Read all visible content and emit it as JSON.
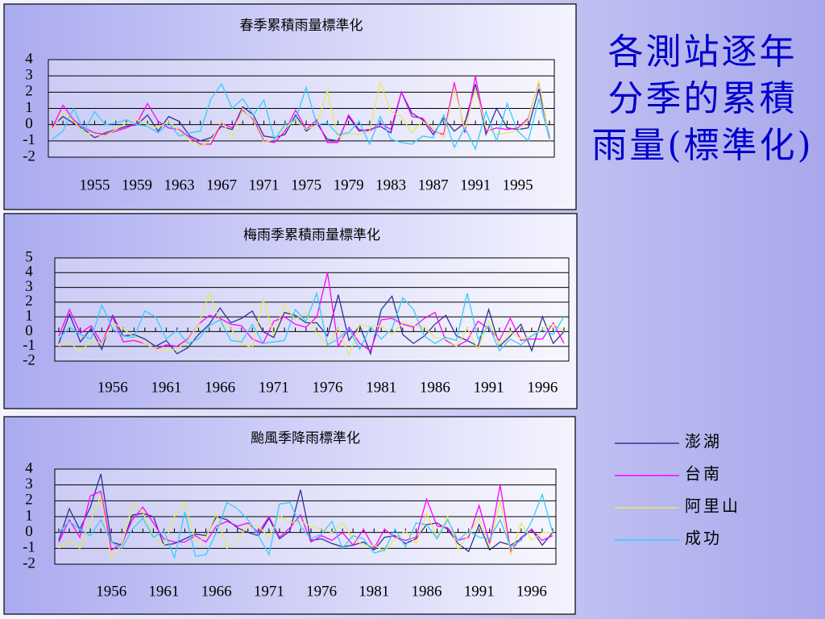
{
  "heading": {
    "lines": [
      "各測站逐年",
      "分季的累積",
      "雨量(標準化)"
    ]
  },
  "chart_data": [
    {
      "type": "line",
      "title": "春季累積雨量標準化",
      "categories": [
        null,
        null,
        null,
        null,
        "1955",
        null,
        null,
        null,
        "1959",
        null,
        null,
        null,
        "1963",
        null,
        null,
        null,
        "1967",
        null,
        null,
        null,
        "1971",
        null,
        null,
        null,
        "1975",
        null,
        null,
        null,
        "1979",
        null,
        null,
        null,
        "1983",
        null,
        null,
        null,
        "1987",
        null,
        null,
        null,
        "1991",
        null,
        null,
        null,
        "1995",
        null,
        null,
        null
      ],
      "ylim": [
        -2,
        4
      ],
      "yticks": [
        -2,
        -1,
        0,
        1,
        2,
        3,
        4
      ],
      "grid": true,
      "series": [
        {
          "name": "澎湖",
          "color": "#333399",
          "values": [
            -0.1,
            0.5,
            0.1,
            -0.3,
            -0.8,
            -0.5,
            -0.3,
            -0.1,
            0.0,
            0.6,
            -0.4,
            0.5,
            0.2,
            -0.7,
            -1.0,
            -0.8,
            -0.1,
            -0.3,
            1.1,
            0.6,
            -0.7,
            -0.8,
            -0.6,
            0.6,
            -0.4,
            0.1,
            -0.9,
            -1.0,
            0.5,
            -0.4,
            -0.3,
            -0.1,
            -0.5,
            2.0,
            0.7,
            0.3,
            -0.6,
            0.4,
            -0.4,
            0.1,
            2.5,
            -0.6,
            1.0,
            -0.2,
            -0.3,
            -0.2,
            2.2,
            -0.8
          ]
        },
        {
          "name": "台南",
          "color": "#ff00ff",
          "values": [
            -0.2,
            1.2,
            0.3,
            -0.2,
            -0.5,
            -0.6,
            -0.4,
            -0.2,
            0.1,
            1.3,
            0.2,
            -0.2,
            -0.3,
            -0.8,
            -1.2,
            -1.2,
            0.1,
            -0.2,
            0.9,
            0.3,
            -1.0,
            -1.1,
            -0.4,
            0.9,
            -0.3,
            0.3,
            -1.1,
            -1.1,
            0.6,
            -0.3,
            -0.4,
            0.1,
            -0.3,
            2.0,
            0.5,
            0.4,
            -0.4,
            -0.6,
            2.6,
            -0.5,
            3.0,
            -0.4,
            -0.2,
            -0.3,
            -0.2,
            0.4,
            2.6,
            -0.9
          ]
        },
        {
          "name": "阿里山",
          "color": "#e8e860",
          "values": [
            -0.3,
            0.8,
            0.2,
            -0.5,
            -0.6,
            -0.7,
            -0.3,
            0.1,
            0.3,
            0.0,
            -0.2,
            0.2,
            -0.4,
            -1.0,
            -1.3,
            -1.0,
            0.2,
            -0.8,
            1.0,
            0.2,
            -1.1,
            -0.9,
            -0.2,
            0.3,
            -0.3,
            0.0,
            2.1,
            -0.8,
            -0.5,
            -0.6,
            -0.4,
            2.6,
            0.8,
            0.5,
            -0.5,
            0.2,
            -0.2,
            -0.8,
            2.3,
            -0.3,
            2.2,
            -0.2,
            -0.6,
            -0.5,
            -0.4,
            0.3,
            2.7,
            -1.0
          ]
        },
        {
          "name": "成功",
          "color": "#33ccff",
          "values": [
            -0.9,
            -0.4,
            1.0,
            -0.4,
            0.8,
            0.0,
            0.1,
            0.3,
            0.0,
            -0.1,
            -0.5,
            0.1,
            -0.7,
            -0.5,
            -0.4,
            1.6,
            2.5,
            1.0,
            1.6,
            0.6,
            1.5,
            -0.9,
            0.0,
            0.3,
            2.3,
            0.0,
            0.1,
            -0.6,
            -0.5,
            0.2,
            -1.2,
            0.5,
            -0.9,
            -1.1,
            -1.2,
            -0.7,
            -0.8,
            0.6,
            -1.4,
            -0.2,
            -1.5,
            0.8,
            -1.0,
            1.3,
            -0.4,
            -1.0,
            1.6,
            -0.9
          ]
        }
      ]
    },
    {
      "type": "line",
      "title": "梅雨季累積雨量標準化",
      "categories": [
        null,
        null,
        null,
        null,
        null,
        "1956",
        null,
        null,
        null,
        null,
        "1961",
        null,
        null,
        null,
        null,
        "1966",
        null,
        null,
        null,
        null,
        "1971",
        null,
        null,
        null,
        null,
        "1976",
        null,
        null,
        null,
        null,
        "1981",
        null,
        null,
        null,
        null,
        "1986",
        null,
        null,
        null,
        null,
        "1991",
        null,
        null,
        null,
        null,
        "1996",
        null,
        null
      ],
      "ylim": [
        -2,
        5
      ],
      "yticks": [
        -2,
        -1,
        0,
        1,
        2,
        3,
        4,
        5
      ],
      "grid": true,
      "series": [
        {
          "name": "澎湖",
          "color": "#333399",
          "values": [
            -0.8,
            1.2,
            -0.7,
            0.2,
            -1.2,
            1.1,
            -0.3,
            -0.2,
            -0.5,
            -1.0,
            -0.6,
            -1.5,
            -1.1,
            -0.2,
            0.5,
            1.6,
            0.6,
            0.9,
            1.4,
            0.0,
            -0.4,
            1.3,
            1.1,
            0.6,
            0.6,
            -0.3,
            2.5,
            -0.6,
            0.4,
            -1.5,
            1.5,
            2.4,
            -0.2,
            -0.8,
            -0.3,
            0.5,
            1.1,
            -0.3,
            -0.6,
            -1.0,
            1.5,
            -1.0,
            -0.3,
            0.5,
            -1.3,
            1.0,
            -0.8,
            0.0
          ]
        },
        {
          "name": "台南",
          "color": "#ff00ff",
          "values": [
            -0.3,
            1.5,
            -0.1,
            0.4,
            -0.8,
            1.0,
            -0.7,
            -0.6,
            -0.8,
            -1.2,
            -0.9,
            -1.0,
            -0.5,
            0.5,
            1.1,
            0.9,
            0.5,
            0.4,
            -0.5,
            -0.8,
            0.7,
            1.0,
            0.5,
            0.3,
            1.0,
            4.0,
            -1.0,
            0.3,
            -0.8,
            -1.3,
            0.8,
            0.9,
            0.5,
            0.3,
            0.9,
            1.3,
            -0.6,
            -1.0,
            -0.6,
            0.7,
            0.2,
            -0.6,
            0.9,
            -0.6,
            -0.5,
            -0.5,
            0.6,
            -0.8
          ]
        },
        {
          "name": "阿里山",
          "color": "#e8e860",
          "values": [
            -1.0,
            -0.7,
            -1.4,
            -0.6,
            -0.8,
            0.6,
            0.2,
            -0.4,
            -0.8,
            -1.2,
            -1.3,
            -1.2,
            -0.6,
            0.5,
            2.6,
            0.7,
            0.2,
            -0.8,
            -1.1,
            2.2,
            -0.2,
            1.8,
            0.8,
            1.3,
            -0.1,
            -0.9,
            0.2,
            -1.6,
            0.5,
            0.3,
            0.4,
            -0.2,
            0.6,
            0.4,
            0.3,
            -0.4,
            -0.5,
            -1.0,
            0.2,
            -1.2,
            0.7,
            -0.9,
            0.0,
            -0.5,
            -0.3,
            0.2,
            0.5,
            0.0
          ]
        },
        {
          "name": "成功",
          "color": "#33ccff",
          "values": [
            -0.5,
            0.3,
            -0.2,
            -0.5,
            1.8,
            0.2,
            -0.3,
            -0.4,
            1.4,
            1.0,
            -0.5,
            0.1,
            -0.8,
            -0.5,
            0.4,
            0.8,
            -0.6,
            -0.7,
            0.5,
            -0.8,
            -0.7,
            -0.6,
            1.5,
            0.7,
            2.6,
            -0.9,
            -0.5,
            0.2,
            -1.2,
            0.3,
            -0.5,
            0.2,
            2.3,
            1.5,
            -0.3,
            -0.8,
            -0.4,
            -0.6,
            2.6,
            -0.5,
            0.4,
            -1.3,
            -0.5,
            -0.9,
            -0.3,
            0.1,
            -0.2,
            1.0
          ]
        }
      ]
    },
    {
      "type": "line",
      "title": "颱風季降雨標準化",
      "categories": [
        null,
        null,
        null,
        null,
        null,
        "1956",
        null,
        null,
        null,
        null,
        "1961",
        null,
        null,
        null,
        null,
        "1966",
        null,
        null,
        null,
        null,
        "1971",
        null,
        null,
        null,
        null,
        "1976",
        null,
        null,
        null,
        null,
        "1981",
        null,
        null,
        null,
        null,
        "1986",
        null,
        null,
        null,
        null,
        "1991",
        null,
        null,
        null,
        null,
        "1996",
        null,
        null
      ],
      "ylim": [
        -2,
        4
      ],
      "yticks": [
        -2,
        -1,
        0,
        1,
        2,
        3,
        4
      ],
      "grid": true,
      "series": [
        {
          "name": "澎湖",
          "color": "#333399",
          "values": [
            -0.5,
            1.5,
            0.2,
            1.6,
            3.7,
            -0.6,
            -0.8,
            1.1,
            1.2,
            1.0,
            -0.8,
            -0.7,
            -0.4,
            -0.1,
            -0.2,
            1.0,
            0.8,
            0.3,
            0.0,
            -0.2,
            0.9,
            -0.4,
            0.1,
            2.7,
            -0.5,
            -0.4,
            -0.7,
            -0.9,
            -0.8,
            -0.6,
            -1.1,
            -0.3,
            -0.2,
            -0.7,
            -0.4,
            0.5,
            0.6,
            0.2,
            -0.7,
            -1.2,
            0.5,
            -1.1,
            -0.6,
            -0.8,
            -0.4,
            0.2,
            -0.8,
            0.0
          ]
        },
        {
          "name": "台南",
          "color": "#ff00ff",
          "values": [
            -0.6,
            0.8,
            -0.3,
            2.3,
            2.6,
            -1.1,
            -0.7,
            0.8,
            1.6,
            0.6,
            -0.4,
            -0.6,
            -0.6,
            -0.2,
            -0.6,
            0.4,
            0.7,
            0.4,
            0.6,
            0.0,
            1.0,
            -0.3,
            0.3,
            1.1,
            -0.6,
            -0.2,
            -0.5,
            0.0,
            -0.8,
            0.2,
            -1.0,
            0.2,
            -0.3,
            -0.5,
            -0.3,
            2.1,
            0.4,
            0.3,
            -0.5,
            -0.3,
            1.7,
            -0.7,
            3.0,
            -1.2,
            -0.3,
            0.2,
            -0.5,
            -0.2
          ]
        },
        {
          "name": "阿里山",
          "color": "#e8e860",
          "values": [
            -1.0,
            -0.5,
            -1.0,
            0.7,
            2.3,
            -1.6,
            -0.8,
            1.8,
            1.3,
            -0.3,
            -0.8,
            1.0,
            1.9,
            -0.6,
            -0.3,
            1.2,
            -1.0,
            -0.5,
            0.5,
            0.4,
            -0.3,
            1.1,
            0.6,
            0.7,
            0.4,
            0.2,
            0.0,
            0.6,
            -0.4,
            -0.8,
            -0.8,
            -1.2,
            -0.4,
            0.1,
            -0.7,
            1.2,
            -0.3,
            1.0,
            -1.1,
            -0.1,
            0.9,
            -0.9,
            2.0,
            -1.4,
            0.6,
            -0.5,
            0.0,
            0.0
          ]
        },
        {
          "name": "成功",
          "color": "#33ccff",
          "values": [
            0.0,
            0.7,
            0.2,
            -0.2,
            0.8,
            -0.6,
            -1.0,
            0.2,
            0.9,
            -0.3,
            0.1,
            -1.6,
            1.3,
            -1.5,
            -1.4,
            0.0,
            1.9,
            1.5,
            0.8,
            -0.2,
            -1.4,
            1.8,
            1.9,
            0.4,
            -0.4,
            -0.1,
            0.7,
            -1.0,
            -0.2,
            -0.4,
            -1.3,
            -1.1,
            0.2,
            -0.9,
            0.6,
            0.5,
            -0.4,
            0.8,
            -0.5,
            0.1,
            -0.3,
            -0.4,
            0.8,
            -0.9,
            -0.5,
            0.7,
            2.4,
            0.0
          ]
        }
      ]
    }
  ]
}
